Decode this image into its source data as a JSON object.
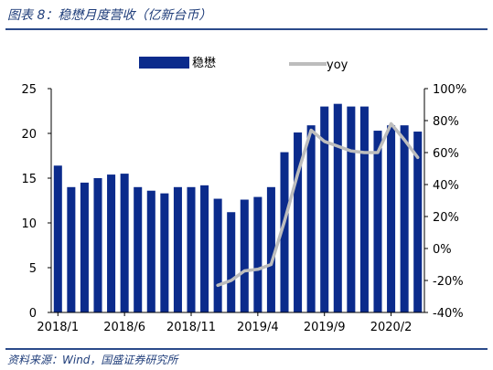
{
  "header": {
    "title": "图表 8：稳懋月度营收（亿新台币）"
  },
  "footer": {
    "source": "资料来源：Wind，国盛证券研究所"
  },
  "colors": {
    "bar": "#0b2b8c",
    "line": "#bdbdbd",
    "axis": "#000000",
    "title": "#1f3d7a"
  },
  "chart_data": {
    "type": "bar",
    "categories": [
      "2018/1",
      "2018/2",
      "2018/3",
      "2018/4",
      "2018/5",
      "2018/6",
      "2018/7",
      "2018/8",
      "2018/9",
      "2018/10",
      "2018/11",
      "2018/12",
      "2019/1",
      "2019/2",
      "2019/3",
      "2019/4",
      "2019/5",
      "2019/6",
      "2019/7",
      "2019/8",
      "2019/9",
      "2019/10",
      "2019/11",
      "2019/12",
      "2020/1",
      "2020/2",
      "2020/3",
      "2020/4"
    ],
    "x_tick_labels": [
      "2018/1",
      "2018/6",
      "2018/11",
      "2019/4",
      "2019/9",
      "2020/2"
    ],
    "x_tick_indices": [
      0,
      5,
      10,
      15,
      20,
      25
    ],
    "series": [
      {
        "name": "稳懋",
        "axis": "left",
        "values": [
          16.4,
          14.0,
          14.5,
          15.0,
          15.4,
          15.5,
          14.0,
          13.6,
          13.3,
          14.0,
          14.0,
          14.2,
          12.7,
          11.2,
          12.6,
          12.9,
          14.0,
          17.9,
          20.1,
          20.9,
          23.0,
          23.3,
          23.0,
          23.0,
          20.3,
          20.9,
          20.9,
          20.2
        ]
      },
      {
        "name": "yoy",
        "axis": "right",
        "values": [
          null,
          null,
          null,
          null,
          null,
          null,
          null,
          null,
          null,
          null,
          null,
          null,
          -23,
          -20,
          -14,
          -13,
          -10,
          17,
          47,
          74,
          67,
          64,
          61,
          60,
          60,
          78,
          68,
          57
        ]
      }
    ],
    "left_axis": {
      "min": 0,
      "max": 25,
      "ticks": [
        0,
        5,
        10,
        15,
        20,
        25
      ],
      "tick_labels": [
        "0",
        "5",
        "10",
        "15",
        "20",
        "25"
      ]
    },
    "right_axis": {
      "min": -40,
      "max": 100,
      "ticks": [
        -40,
        -20,
        0,
        20,
        40,
        60,
        80,
        100
      ],
      "tick_labels": [
        "-40%",
        "-20%",
        "0%",
        "20%",
        "40%",
        "60%",
        "80%",
        "100%"
      ]
    },
    "legend": {
      "placement": "top",
      "items": [
        "稳懋",
        "yoy"
      ]
    },
    "grid": false
  }
}
